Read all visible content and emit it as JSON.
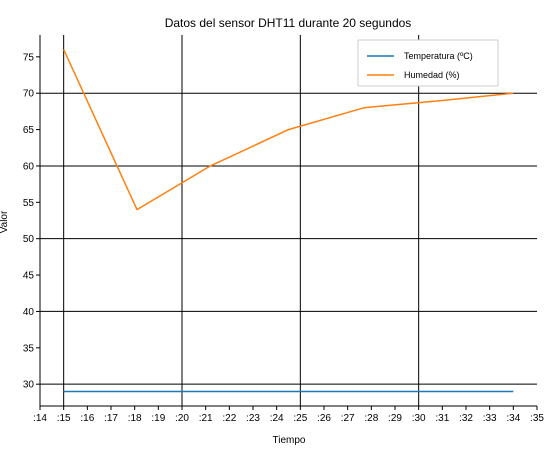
{
  "chart_data": {
    "type": "line",
    "title": "Datos del sensor DHT11 durante 20 segundos",
    "xlabel": "Tiempo",
    "ylabel": "Valor",
    "x_ticks": [
      ":14",
      ":15",
      ":16",
      ":17",
      ":18",
      ":19",
      ":20",
      ":21",
      ":22",
      ":23",
      ":24",
      ":25",
      ":26",
      ":27",
      ":28",
      ":29",
      ":30",
      ":31",
      ":32",
      ":33",
      ":34",
      ":35"
    ],
    "xlim": [
      14,
      35
    ],
    "ylim": [
      27,
      78
    ],
    "y_ticks": [
      30,
      35,
      40,
      45,
      50,
      55,
      60,
      65,
      70,
      75
    ],
    "major_x_gridlines": [
      15,
      20,
      25,
      30
    ],
    "major_y_gridlines": [
      30,
      40,
      50,
      60,
      70
    ],
    "grid": true,
    "legend_position": "top-right",
    "series": [
      {
        "name": "Temperatura (ºC)",
        "color": "#1f77b4",
        "x": [
          15.0,
          34.0
        ],
        "y": [
          29.0,
          29.0
        ]
      },
      {
        "name": "Humedad (%)",
        "color": "#ff7f0e",
        "x": [
          15.0,
          18.1,
          21.2,
          24.5,
          27.7,
          31.0,
          34.0
        ],
        "y": [
          76.0,
          54.0,
          60.0,
          65.0,
          68.0,
          69.0,
          70.0
        ]
      }
    ]
  }
}
